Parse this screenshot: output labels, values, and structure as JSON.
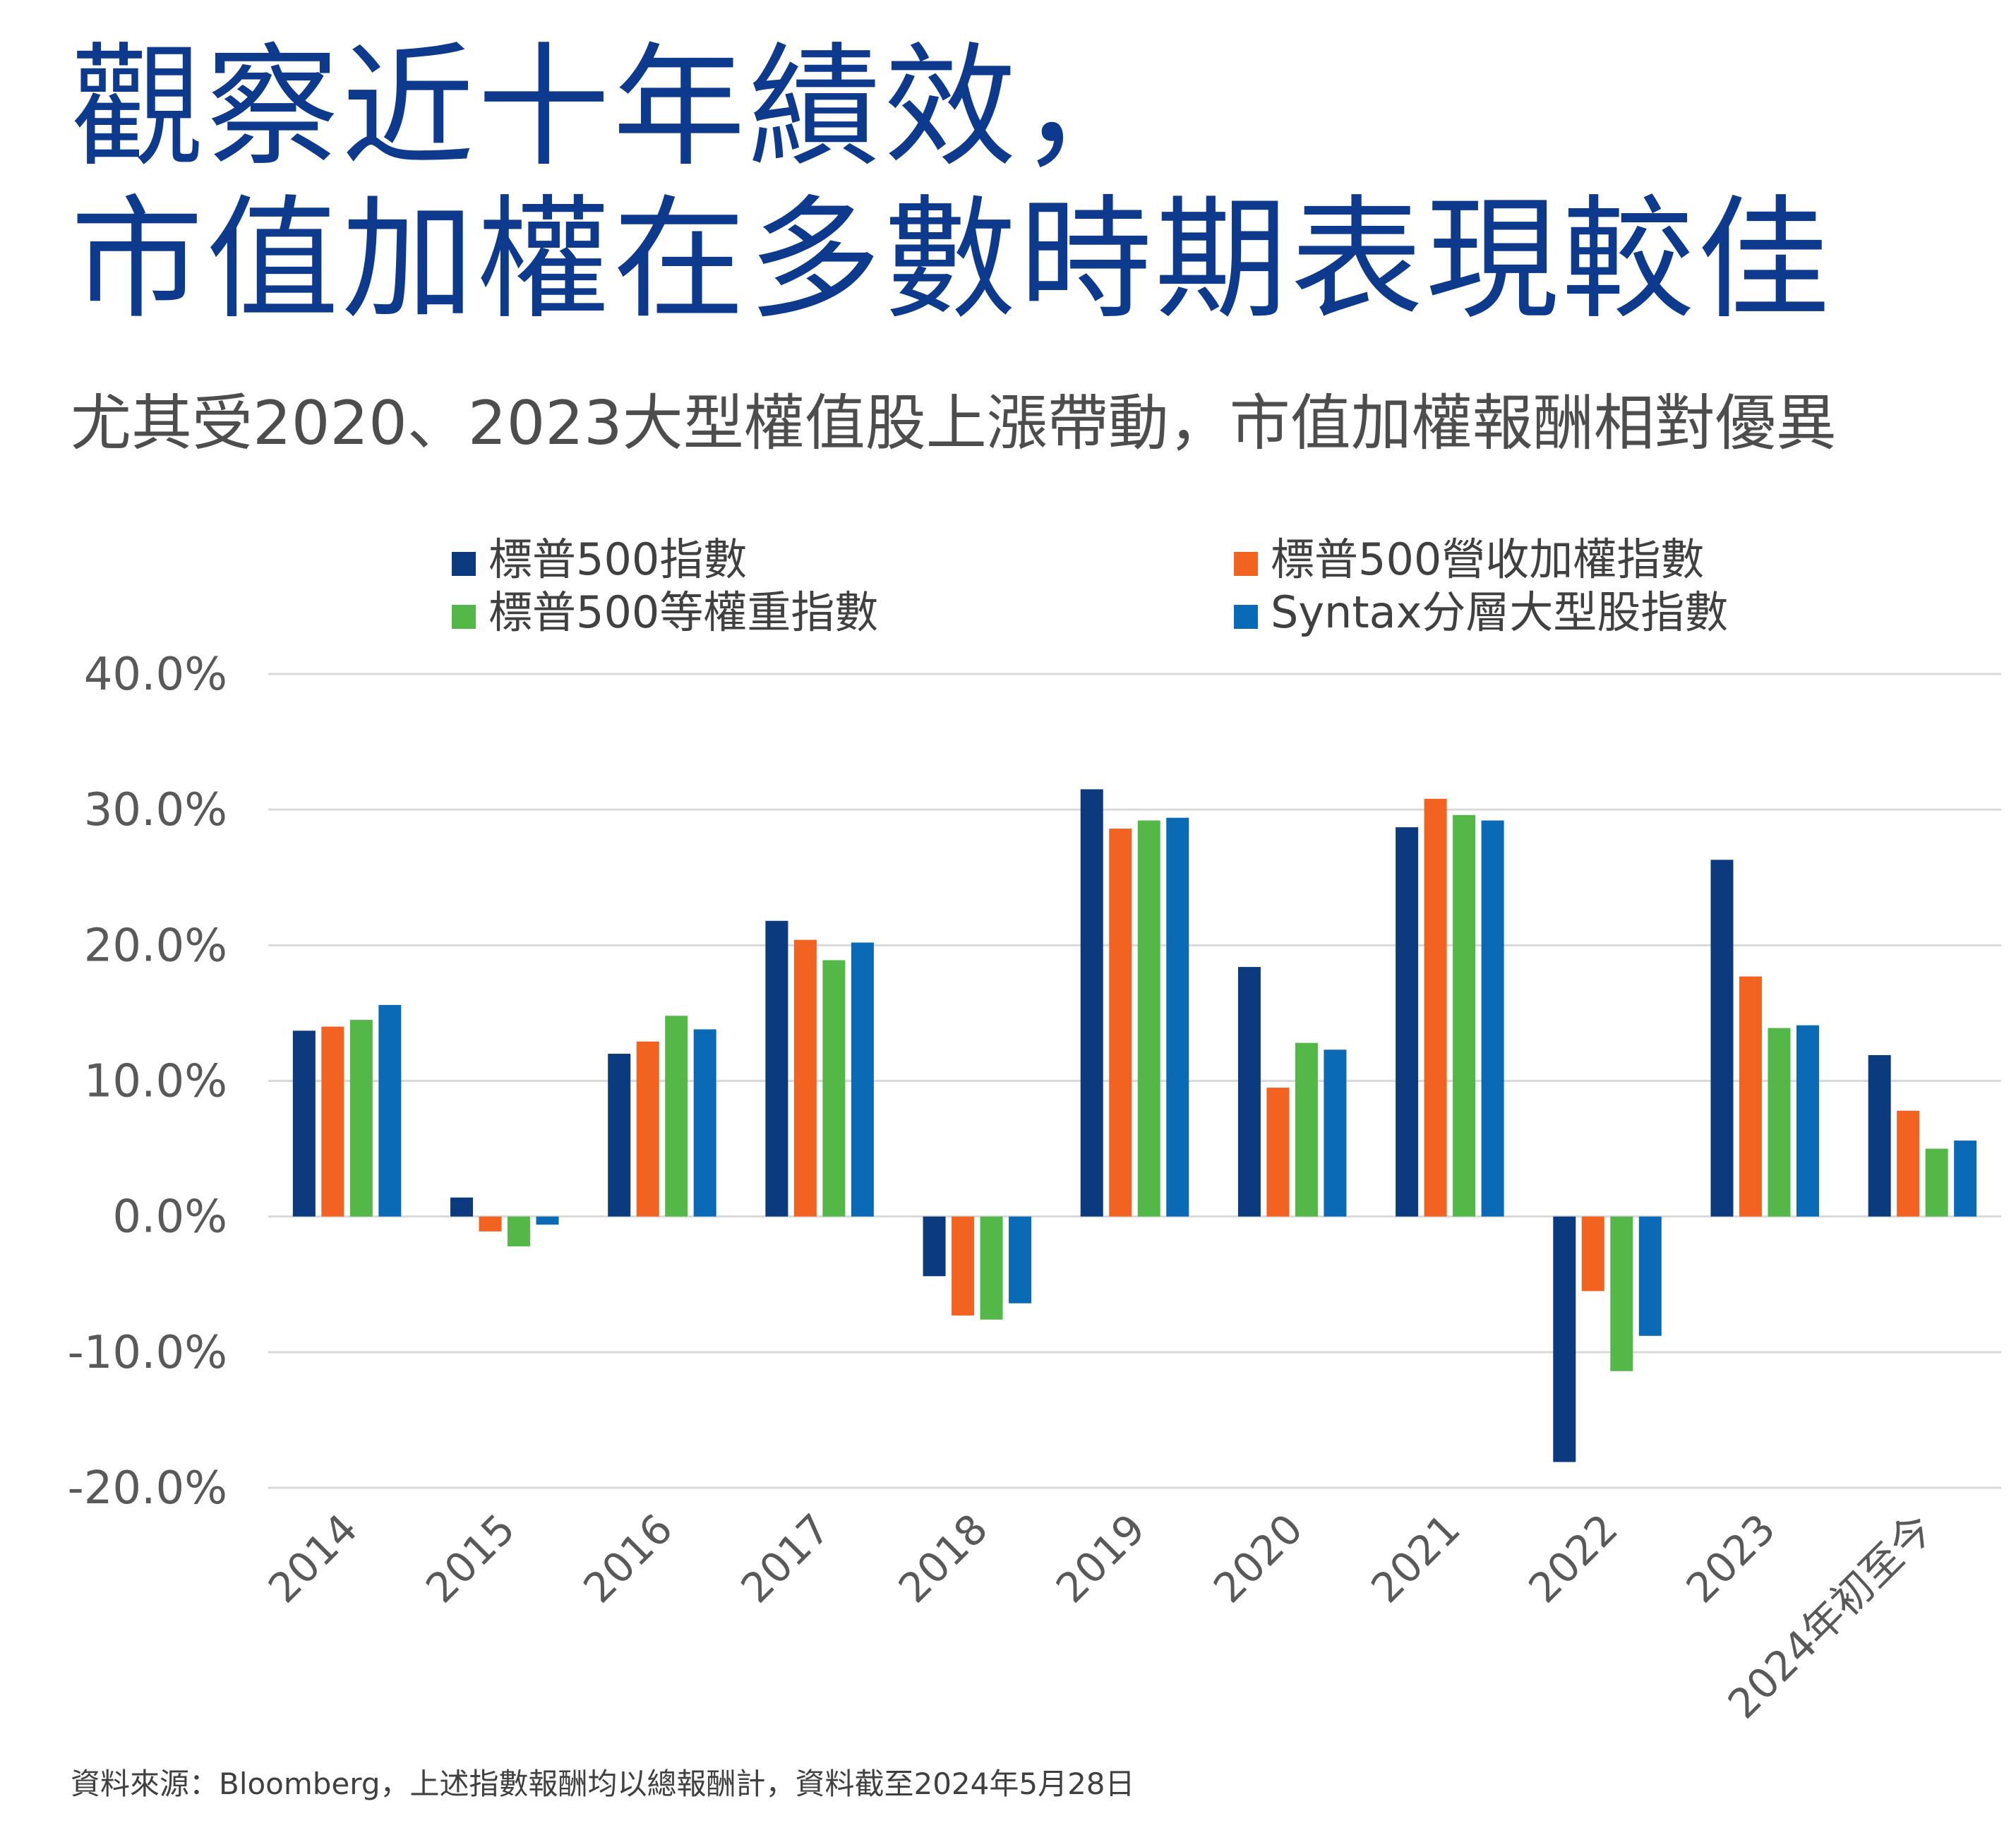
{
  "header": {
    "title_line1": "觀察近十年績效，",
    "title_line2": "市值加權在多數時期表現較佳",
    "subtitle": "尤其受2020、2023大型權值股上漲帶動，市值加權報酬相對優異"
  },
  "footer": {
    "source": "資料來源：Bloomberg，上述指數報酬均以總報酬計，資料截至2024年5月28日"
  },
  "colors": {
    "title": "#0d3a8c",
    "grid": "#d9d9d9",
    "axis_text": "#595959"
  },
  "chart_data": {
    "type": "bar",
    "title": "",
    "xlabel": "",
    "ylabel": "",
    "ylim": [
      -20,
      40
    ],
    "yticks": [
      40,
      30,
      20,
      10,
      0,
      -10,
      -20
    ],
    "ytick_labels": [
      "40.0%",
      "30.0%",
      "20.0%",
      "10.0%",
      "0.0%",
      "-10.0%",
      "-20.0%"
    ],
    "grid": true,
    "legend_position": "top",
    "categories": [
      "2014",
      "2015",
      "2016",
      "2017",
      "2018",
      "2019",
      "2020",
      "2021",
      "2022",
      "2023",
      "2024年初至今"
    ],
    "series": [
      {
        "name": "標普500指數",
        "color": "#0b3a7e",
        "values": [
          13.7,
          1.4,
          12.0,
          21.8,
          -4.4,
          31.5,
          18.4,
          28.7,
          -18.1,
          26.3,
          11.9
        ]
      },
      {
        "name": "標普500營收加權指數",
        "color": "#f26322",
        "values": [
          14.0,
          -1.1,
          12.9,
          20.4,
          -7.3,
          28.6,
          9.5,
          30.8,
          -5.5,
          17.7,
          7.8
        ]
      },
      {
        "name": "標普500等權重指數",
        "color": "#53b848",
        "values": [
          14.5,
          -2.2,
          14.8,
          18.9,
          -7.6,
          29.2,
          12.8,
          29.6,
          -11.4,
          13.9,
          5.0
        ]
      },
      {
        "name": "Syntax分層大型股指數",
        "color": "#0a6ab6",
        "values": [
          15.6,
          -0.6,
          13.8,
          20.2,
          -6.4,
          29.4,
          12.3,
          29.2,
          -8.8,
          14.1,
          5.6
        ]
      }
    ]
  }
}
